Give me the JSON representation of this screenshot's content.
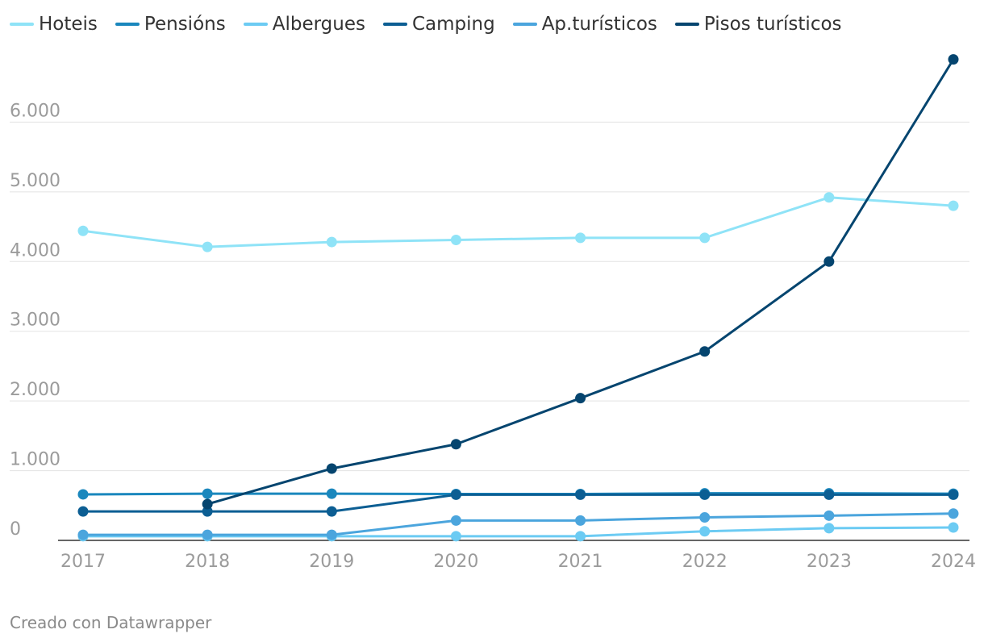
{
  "chart_data": {
    "type": "line",
    "x": [
      "2017",
      "2018",
      "2019",
      "2020",
      "2021",
      "2022",
      "2023",
      "2024"
    ],
    "ylim": [
      0,
      7000
    ],
    "yticks": [
      0,
      1000,
      2000,
      3000,
      4000,
      5000,
      6000
    ],
    "ytick_labels": [
      "0",
      "1.000",
      "2.000",
      "3.000",
      "4.000",
      "5.000",
      "6.000"
    ],
    "grid": true,
    "legend_position": "top-left",
    "series": [
      {
        "name": "Hoteis",
        "color": "#8fe3f7",
        "values": [
          4440,
          4210,
          4280,
          4310,
          4340,
          4340,
          4920,
          4800
        ]
      },
      {
        "name": "Pensións",
        "color": "#1a87bd",
        "values": [
          660,
          670,
          670,
          665,
          665,
          675,
          675,
          670
        ]
      },
      {
        "name": "Albergues",
        "color": "#6ccbf3",
        "values": [
          60,
          60,
          60,
          60,
          60,
          130,
          175,
          185
        ]
      },
      {
        "name": "Camping",
        "color": "#0c5e93",
        "values": [
          415,
          415,
          415,
          655,
          655,
          655,
          655,
          655
        ]
      },
      {
        "name": "Ap.turísticos",
        "color": "#4ba5dd",
        "values": [
          80,
          80,
          80,
          285,
          285,
          330,
          355,
          385
        ]
      },
      {
        "name": "Pisos turísticos",
        "color": "#05456f",
        "values": [
          null,
          520,
          1030,
          1380,
          2040,
          2710,
          4000,
          6900
        ]
      }
    ]
  },
  "credit": "Creado con Datawrapper"
}
